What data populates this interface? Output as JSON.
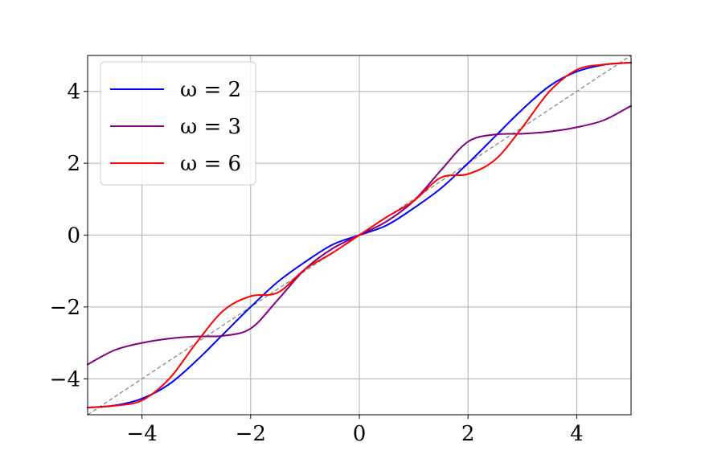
{
  "chart_data": {
    "type": "line",
    "title": "",
    "xlabel": "",
    "ylabel": "",
    "xlim": [
      -5,
      5
    ],
    "ylim": [
      -5,
      5
    ],
    "xticks": [
      -4,
      -2,
      0,
      2,
      4
    ],
    "yticks": [
      -4,
      -2,
      0,
      2,
      4
    ],
    "xtick_labels": [
      "−4",
      "−2",
      "0",
      "2",
      "4"
    ],
    "ytick_labels": [
      "−4",
      "−2",
      "0",
      "2",
      "4"
    ],
    "grid": true,
    "legend": "top-left",
    "reference_line": {
      "style": "dashed",
      "color": "#808080",
      "x": [
        -5,
        5
      ],
      "y": [
        -5,
        5
      ]
    },
    "x": [
      -5,
      -4.5,
      -4,
      -3.5,
      -3,
      -2.5,
      -2,
      -1.5,
      -1,
      -0.5,
      0,
      0.5,
      1,
      1.5,
      2,
      2.5,
      3,
      3.5,
      4,
      4.5,
      5
    ],
    "series": [
      {
        "name": "ω = 2",
        "color": "#0000ff",
        "values": [
          -4.8,
          -4.74,
          -4.55,
          -4.15,
          -3.5,
          -2.75,
          -2.0,
          -1.3,
          -0.75,
          -0.27,
          0,
          0.27,
          0.75,
          1.3,
          2.0,
          2.75,
          3.5,
          4.15,
          4.55,
          4.74,
          4.8
        ]
      },
      {
        "name": "ω = 3",
        "color": "#800080",
        "values": [
          -3.6,
          -3.2,
          -3.0,
          -2.88,
          -2.82,
          -2.8,
          -2.6,
          -1.8,
          -0.95,
          -0.38,
          0,
          0.38,
          0.95,
          1.8,
          2.6,
          2.8,
          2.82,
          2.88,
          3.0,
          3.2,
          3.6
        ]
      },
      {
        "name": "ω = 6",
        "color": "#ff0000",
        "values": [
          -4.8,
          -4.75,
          -4.6,
          -4.0,
          -3.0,
          -2.1,
          -1.7,
          -1.6,
          -0.95,
          -0.5,
          0,
          0.5,
          0.95,
          1.6,
          1.7,
          2.1,
          3.0,
          4.0,
          4.6,
          4.75,
          4.8
        ]
      }
    ]
  }
}
